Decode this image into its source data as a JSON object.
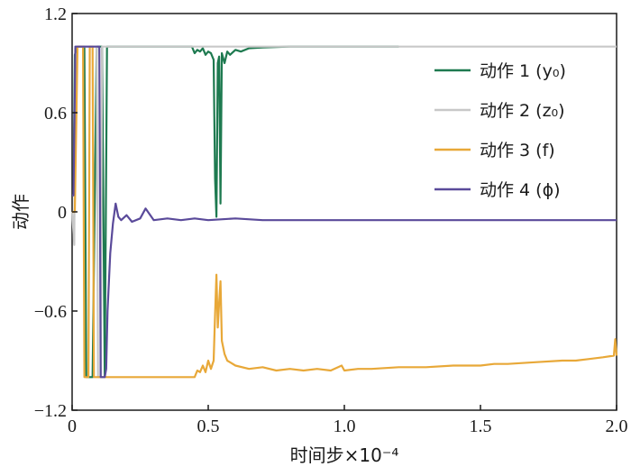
{
  "chart_data": {
    "type": "line",
    "xlabel": "时间步×10⁻⁴",
    "ylabel": "动作",
    "xlim": [
      0,
      2.0
    ],
    "ylim": [
      -1.2,
      1.2
    ],
    "x_ticks": [
      "0",
      "0.5",
      "1.0",
      "1.5",
      "2.0"
    ],
    "x_tick_values": [
      0,
      0.5,
      1.0,
      1.5,
      2.0
    ],
    "y_ticks": [
      "-1.2",
      "-0.6",
      "0",
      "0.6",
      "1.2"
    ],
    "y_tick_values": [
      -1.2,
      -0.6,
      0,
      0.6,
      1.2
    ],
    "grid": false,
    "legend_position": "top-right",
    "series": [
      {
        "name": "动作 1 (y₀)",
        "color": "#1e7a50",
        "points": [
          [
            0.0,
            0.1
          ],
          [
            0.005,
            0.1
          ],
          [
            0.01,
            0.95
          ],
          [
            0.02,
            1.0
          ],
          [
            0.045,
            1.0
          ],
          [
            0.052,
            -1.0
          ],
          [
            0.075,
            -1.0
          ],
          [
            0.09,
            1.0
          ],
          [
            0.11,
            1.0
          ],
          [
            0.12,
            -1.0
          ],
          [
            0.128,
            1.0
          ],
          [
            0.44,
            1.0
          ],
          [
            0.45,
            0.96
          ],
          [
            0.46,
            0.98
          ],
          [
            0.47,
            0.97
          ],
          [
            0.48,
            0.99
          ],
          [
            0.49,
            0.95
          ],
          [
            0.5,
            0.97
          ],
          [
            0.51,
            0.96
          ],
          [
            0.52,
            0.92
          ],
          [
            0.525,
            0.2
          ],
          [
            0.53,
            -0.03
          ],
          [
            0.535,
            0.9
          ],
          [
            0.54,
            0.94
          ],
          [
            0.545,
            0.05
          ],
          [
            0.55,
            0.96
          ],
          [
            0.56,
            0.9
          ],
          [
            0.57,
            0.97
          ],
          [
            0.58,
            0.95
          ],
          [
            0.6,
            0.98
          ],
          [
            0.62,
            0.97
          ],
          [
            0.65,
            0.99
          ],
          [
            0.7,
            0.995
          ],
          [
            0.8,
            1.0
          ],
          [
            0.9,
            1.0
          ],
          [
            1.0,
            1.0
          ],
          [
            1.2,
            1.0
          ]
        ]
      },
      {
        "name": "动作 2 (z₀)",
        "color": "#c8c8c8",
        "points": [
          [
            0.0,
            0.0
          ],
          [
            0.008,
            -0.2
          ],
          [
            0.012,
            1.0
          ],
          [
            0.09,
            1.0
          ],
          [
            0.095,
            -1.0
          ],
          [
            0.105,
            -1.0
          ],
          [
            0.11,
            1.0
          ],
          [
            0.5,
            1.0
          ],
          [
            1.0,
            1.0
          ],
          [
            1.5,
            1.0
          ],
          [
            2.0,
            1.0
          ]
        ]
      },
      {
        "name": "动作 3 (f)",
        "color": "#e8a838",
        "points": [
          [
            0.0,
            0.0
          ],
          [
            0.01,
            0.0
          ],
          [
            0.02,
            1.0
          ],
          [
            0.04,
            1.0
          ],
          [
            0.045,
            -1.0
          ],
          [
            0.06,
            -1.0
          ],
          [
            0.065,
            1.0
          ],
          [
            0.075,
            1.0
          ],
          [
            0.08,
            -1.0
          ],
          [
            0.45,
            -1.0
          ],
          [
            0.46,
            -0.96
          ],
          [
            0.47,
            -0.97
          ],
          [
            0.48,
            -0.93
          ],
          [
            0.49,
            -0.97
          ],
          [
            0.5,
            -0.9
          ],
          [
            0.51,
            -0.95
          ],
          [
            0.52,
            -0.9
          ],
          [
            0.525,
            -0.62
          ],
          [
            0.53,
            -0.38
          ],
          [
            0.535,
            -0.7
          ],
          [
            0.54,
            -0.55
          ],
          [
            0.545,
            -0.42
          ],
          [
            0.55,
            -0.78
          ],
          [
            0.56,
            -0.86
          ],
          [
            0.57,
            -0.9
          ],
          [
            0.6,
            -0.93
          ],
          [
            0.65,
            -0.95
          ],
          [
            0.7,
            -0.94
          ],
          [
            0.75,
            -0.96
          ],
          [
            0.8,
            -0.95
          ],
          [
            0.85,
            -0.96
          ],
          [
            0.9,
            -0.95
          ],
          [
            0.95,
            -0.96
          ],
          [
            0.99,
            -0.93
          ],
          [
            1.0,
            -0.96
          ],
          [
            1.05,
            -0.95
          ],
          [
            1.1,
            -0.95
          ],
          [
            1.2,
            -0.94
          ],
          [
            1.3,
            -0.94
          ],
          [
            1.4,
            -0.93
          ],
          [
            1.5,
            -0.93
          ],
          [
            1.55,
            -0.92
          ],
          [
            1.6,
            -0.92
          ],
          [
            1.7,
            -0.91
          ],
          [
            1.8,
            -0.9
          ],
          [
            1.85,
            -0.9
          ],
          [
            1.9,
            -0.89
          ],
          [
            1.95,
            -0.88
          ],
          [
            1.99,
            -0.87
          ],
          [
            1.995,
            -0.77
          ],
          [
            2.0,
            -0.87
          ]
        ]
      },
      {
        "name": "动作 4 (ϕ)",
        "color": "#5a4a9a",
        "points": [
          [
            0.0,
            0.1
          ],
          [
            0.005,
            0.1
          ],
          [
            0.012,
            1.0
          ],
          [
            0.1,
            1.0
          ],
          [
            0.105,
            -1.0
          ],
          [
            0.12,
            -1.0
          ],
          [
            0.125,
            -0.95
          ],
          [
            0.13,
            -0.6
          ],
          [
            0.14,
            -0.25
          ],
          [
            0.15,
            -0.07
          ],
          [
            0.16,
            0.05
          ],
          [
            0.17,
            -0.03
          ],
          [
            0.18,
            -0.05
          ],
          [
            0.2,
            -0.02
          ],
          [
            0.22,
            -0.06
          ],
          [
            0.25,
            -0.04
          ],
          [
            0.27,
            0.02
          ],
          [
            0.3,
            -0.05
          ],
          [
            0.35,
            -0.04
          ],
          [
            0.4,
            -0.05
          ],
          [
            0.45,
            -0.04
          ],
          [
            0.5,
            -0.05
          ],
          [
            0.6,
            -0.04
          ],
          [
            0.7,
            -0.05
          ],
          [
            0.8,
            -0.05
          ],
          [
            0.9,
            -0.05
          ],
          [
            1.0,
            -0.05
          ],
          [
            1.2,
            -0.05
          ],
          [
            1.4,
            -0.05
          ],
          [
            1.6,
            -0.05
          ],
          [
            1.8,
            -0.05
          ],
          [
            2.0,
            -0.05
          ]
        ]
      }
    ]
  }
}
